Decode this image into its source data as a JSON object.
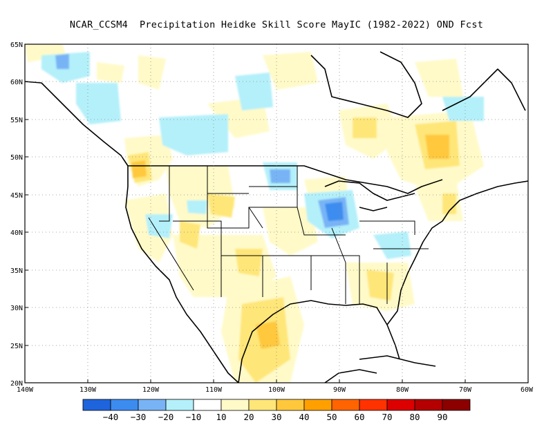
{
  "title": "NCAR_CCSM4  Precipitation Heidke Skill Score MayIC (1982-2022) OND Fcst",
  "map": {
    "lon_range": [
      -140,
      -60
    ],
    "lat_range": [
      20,
      65
    ],
    "lat_labels": [
      "65N",
      "60N",
      "55N",
      "50N",
      "45N",
      "40N",
      "35N",
      "30N",
      "25N",
      "20N"
    ],
    "lon_labels": [
      "140W",
      "130W",
      "120W",
      "110W",
      "100W",
      "90W",
      "80W",
      "70W",
      "60W"
    ],
    "grid": "dotted"
  },
  "colorbar": {
    "colors": [
      "#1e64dc",
      "#3c8cf0",
      "#78b4f5",
      "#b4f0fa",
      "#ffffff",
      "#fffac8",
      "#ffe678",
      "#ffc83c",
      "#ffa000",
      "#ff6400",
      "#ff3200",
      "#dc0000",
      "#b40000",
      "#8c0000"
    ],
    "labels": [
      "−40",
      "−30",
      "−20",
      "−10",
      "10",
      "20",
      "30",
      "40",
      "50",
      "60",
      "70",
      "80",
      "90"
    ]
  },
  "features": {
    "Orange": "#ffc83c",
    "Yellow": "#fffac8",
    "Cyan": "#b4f0fa",
    "Blue": "#3c8cf0"
  }
}
